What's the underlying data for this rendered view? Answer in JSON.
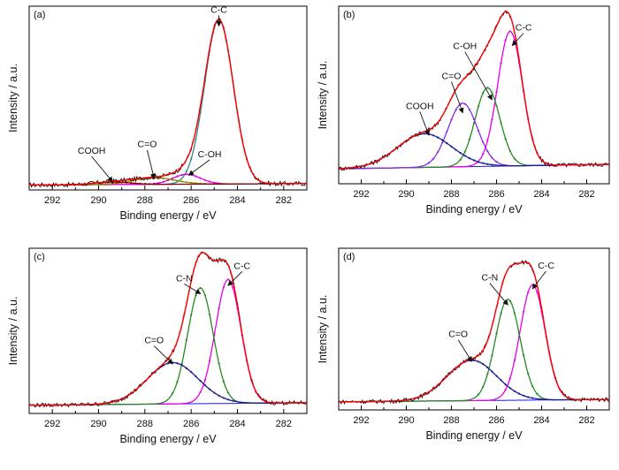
{
  "chart_data": [
    {
      "type": "line",
      "panel": "(a)",
      "xlabel": "Binding energy / eV",
      "ylabel": "Intensity / a.u.",
      "xlim": [
        293,
        281
      ],
      "x_reversed": true,
      "x_ticks": [
        "292",
        "290",
        "288",
        "286",
        "284",
        "282"
      ],
      "baseline": 0.03,
      "components": [
        {
          "name": "C-C",
          "center": 284.8,
          "sigma": 0.62,
          "amplitude": 1.0,
          "color": "#2e8b8b"
        },
        {
          "name": "C-OH",
          "center": 286.2,
          "sigma": 0.6,
          "amplitude": 0.06,
          "color": "#e600e6"
        },
        {
          "name": "C=O",
          "center": 287.6,
          "sigma": 0.9,
          "amplitude": 0.04,
          "color": "#8b8b00"
        },
        {
          "name": "COOH",
          "center": 289.4,
          "sigma": 0.8,
          "amplitude": 0.015,
          "color": "#8b0000"
        }
      ],
      "annotations": [
        {
          "text": "C-C",
          "x": 284.8,
          "y": 1.08,
          "arrow_to": [
            284.8,
            1.0
          ]
        },
        {
          "text": "C-OH",
          "x": 285.2,
          "y": 0.2,
          "arrow_to": [
            286.1,
            0.09
          ]
        },
        {
          "text": "C=O",
          "x": 287.9,
          "y": 0.26,
          "arrow_to": [
            287.6,
            0.07
          ]
        },
        {
          "text": "COOH",
          "x": 290.3,
          "y": 0.22,
          "arrow_to": [
            289.4,
            0.05
          ]
        }
      ]
    },
    {
      "type": "line",
      "panel": "(b)",
      "xlabel": "Binding energy / eV",
      "ylabel": "Intensity / a.u.",
      "xlim": [
        293,
        281
      ],
      "x_reversed": true,
      "x_ticks": [
        "292",
        "290",
        "288",
        "286",
        "284",
        "282"
      ],
      "baseline": 0.08,
      "components": [
        {
          "name": "C-C",
          "center": 285.4,
          "sigma": 0.55,
          "amplitude": 0.72,
          "color": "#e600e6"
        },
        {
          "name": "C-OH",
          "center": 286.4,
          "sigma": 0.55,
          "amplitude": 0.42,
          "color": "#228b22"
        },
        {
          "name": "C=O",
          "center": 287.5,
          "sigma": 0.65,
          "amplitude": 0.34,
          "color": "#8a2be2"
        },
        {
          "name": "COOH",
          "center": 289.2,
          "sigma": 1.2,
          "amplitude": 0.18,
          "color": "#1a1a8c"
        }
      ],
      "annotations": [
        {
          "text": "C-C",
          "x": 284.8,
          "y": 0.82,
          "arrow_to": [
            285.3,
            0.74
          ]
        },
        {
          "text": "C-OH",
          "x": 287.4,
          "y": 0.72,
          "arrow_to": [
            286.2,
            0.45
          ]
        },
        {
          "text": "C=O",
          "x": 288.0,
          "y": 0.56,
          "arrow_to": [
            287.5,
            0.38
          ]
        },
        {
          "text": "COOH",
          "x": 289.4,
          "y": 0.4,
          "arrow_to": [
            289.0,
            0.26
          ]
        }
      ]
    },
    {
      "type": "line",
      "panel": "(c)",
      "xlabel": "Binding energy / eV",
      "ylabel": "Intensity / a.u.",
      "xlim": [
        293,
        281
      ],
      "x_reversed": true,
      "x_ticks": [
        "292",
        "290",
        "288",
        "286",
        "284",
        "282"
      ],
      "baseline": 0.04,
      "components": [
        {
          "name": "C-C",
          "center": 284.4,
          "sigma": 0.55,
          "amplitude": 0.6,
          "color": "#e600e6"
        },
        {
          "name": "C-N",
          "center": 285.6,
          "sigma": 0.55,
          "amplitude": 0.56,
          "color": "#228b22"
        },
        {
          "name": "C=O",
          "center": 286.8,
          "sigma": 1.1,
          "amplitude": 0.2,
          "color": "#1a1a8c"
        }
      ],
      "annotations": [
        {
          "text": "C-C",
          "x": 283.8,
          "y": 0.7,
          "arrow_to": [
            284.4,
            0.62
          ]
        },
        {
          "text": "C-N",
          "x": 286.3,
          "y": 0.64,
          "arrow_to": [
            285.6,
            0.58
          ]
        },
        {
          "text": "C=O",
          "x": 287.6,
          "y": 0.34,
          "arrow_to": [
            286.8,
            0.24
          ]
        }
      ]
    },
    {
      "type": "line",
      "panel": "(d)",
      "xlabel": "Binding energy / eV",
      "ylabel": "Intensity / a.u.",
      "xlim": [
        293,
        281
      ],
      "x_reversed": true,
      "x_ticks": [
        "292",
        "290",
        "288",
        "286",
        "284",
        "282"
      ],
      "baseline": 0.04,
      "components": [
        {
          "name": "C-C",
          "center": 284.4,
          "sigma": 0.55,
          "amplitude": 0.57,
          "color": "#e600e6"
        },
        {
          "name": "C-N",
          "center": 285.5,
          "sigma": 0.55,
          "amplitude": 0.5,
          "color": "#228b22"
        },
        {
          "name": "C=O",
          "center": 287.1,
          "sigma": 1.1,
          "amplitude": 0.2,
          "color": "#1a1a8c"
        }
      ],
      "annotations": [
        {
          "text": "C-C",
          "x": 283.8,
          "y": 0.7,
          "arrow_to": [
            284.4,
            0.6
          ]
        },
        {
          "text": "C-N",
          "x": 286.3,
          "y": 0.64,
          "arrow_to": [
            285.5,
            0.52
          ]
        },
        {
          "text": "C=O",
          "x": 287.7,
          "y": 0.36,
          "arrow_to": [
            287.1,
            0.24
          ]
        }
      ]
    }
  ],
  "style": {
    "fit_envelope_color": "#ff0000",
    "background_line_color": "#1a1aff",
    "raw_data_color": "#000000"
  }
}
